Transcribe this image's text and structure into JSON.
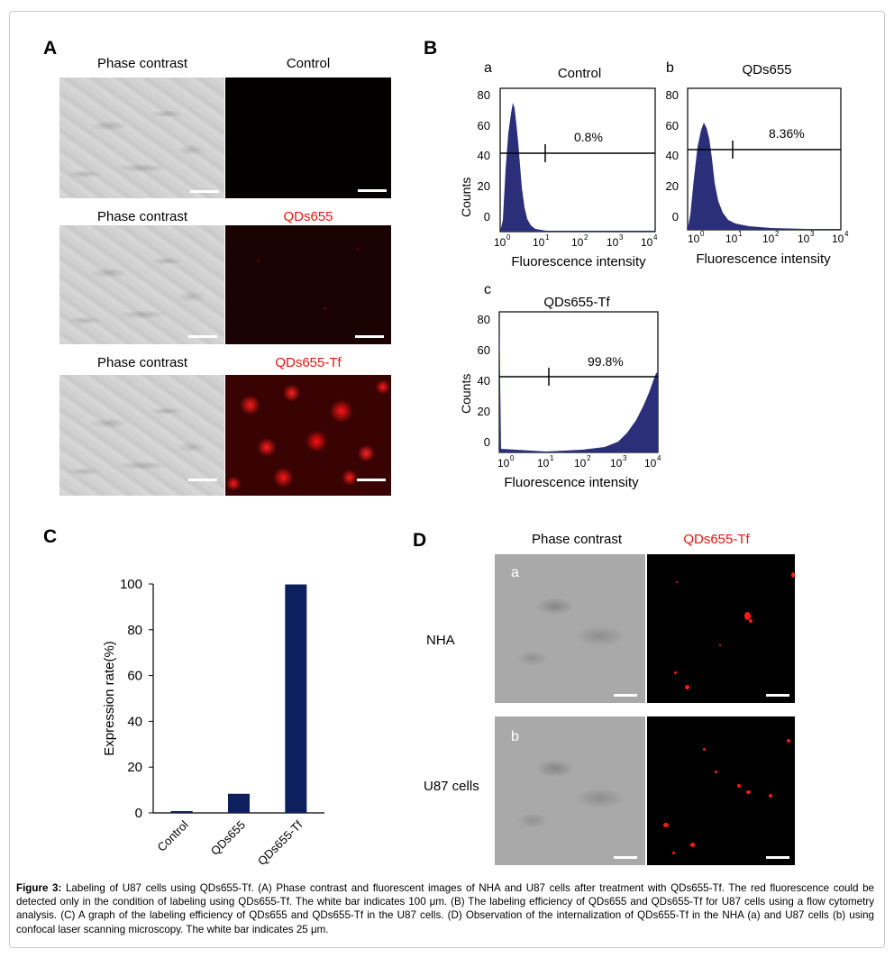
{
  "panel_letters": {
    "A": "A",
    "B": "B",
    "C": "C",
    "D": "D"
  },
  "panel_A": {
    "rows": [
      {
        "left_label": "Phase contrast",
        "right_label": "Control"
      },
      {
        "left_label": "Phase contrast",
        "right_label": "QDs655"
      },
      {
        "left_label": "Phase contrast",
        "right_label": "QDs655-Tf"
      }
    ]
  },
  "panel_B": {
    "histograms": [
      {
        "letter": "a",
        "title": "Control",
        "percent": "0.8%",
        "ylabel": "Counts",
        "xlabel": "Fluorescence intensity",
        "yticks": [
          "80",
          "60",
          "40",
          "20",
          "0"
        ],
        "xticks": [
          "10",
          "10",
          "10",
          "10",
          "10"
        ],
        "xexp": [
          "0",
          "1",
          "2",
          "3",
          "4"
        ]
      },
      {
        "letter": "b",
        "title": "QDs655",
        "percent": "8.36%",
        "ylabel": "",
        "xlabel": "Fluorescence intensity",
        "yticks": [
          "80",
          "60",
          "40",
          "20",
          "0"
        ],
        "xticks": [
          "10",
          "10",
          "10",
          "10",
          "10"
        ],
        "xexp": [
          "0",
          "1",
          "2",
          "3",
          "4"
        ]
      },
      {
        "letter": "c",
        "title": "QDs655-Tf",
        "percent": "99.8%",
        "ylabel": "Counts",
        "xlabel": "Fluorescence intensity",
        "yticks": [
          "80",
          "60",
          "40",
          "20",
          "0"
        ],
        "xticks": [
          "10",
          "10",
          "10",
          "10",
          "10"
        ],
        "xexp": [
          "0",
          "1",
          "2",
          "3",
          "4"
        ]
      }
    ]
  },
  "chart_data": {
    "type": "bar",
    "categories": [
      "Control",
      "QDs655",
      "QDs655-Tf"
    ],
    "values": [
      0.8,
      8.36,
      99.8
    ],
    "ylabel": "Expression rate(%)",
    "xlabel": "",
    "ylim": [
      0,
      100
    ],
    "yticks": [
      "0",
      "20",
      "40",
      "60",
      "80",
      "100"
    ],
    "bar_color": "#0d1f5c"
  },
  "panel_D": {
    "col_left": "Phase contrast",
    "col_right": "QDs655-Tf",
    "rows": [
      {
        "label": "NHA",
        "letter": "a"
      },
      {
        "label": "U87 cells",
        "letter": "b"
      }
    ]
  },
  "caption": {
    "lead": "Figure 3:",
    "text": "Labeling of U87 cells using QDs655-Tf. (A) Phase contrast and fluorescent images of NHA and U87 cells after treatment with QDs655-Tf. The red fluorescence could be detected only in the condition of labeling using QDs655-Tf. The white bar indicates 100 μm. (B) The labeling efficiency of QDs655 and QDs655-Tf for U87 cells using a flow cytometry analysis. (C) A graph of the labeling efficiency of QDs655 and QDs655-Tf in the U87 cells. (D) Observation of the internalization of QDs655-Tf in the NHA (a) and U87 cells (b) using confocal laser scanning microscopy. The white bar indicates 25 μm."
  },
  "colors": {
    "red_label": "#e8140e",
    "histogram_fill": "#2b2f7a",
    "bar": "#0d1f5c"
  }
}
